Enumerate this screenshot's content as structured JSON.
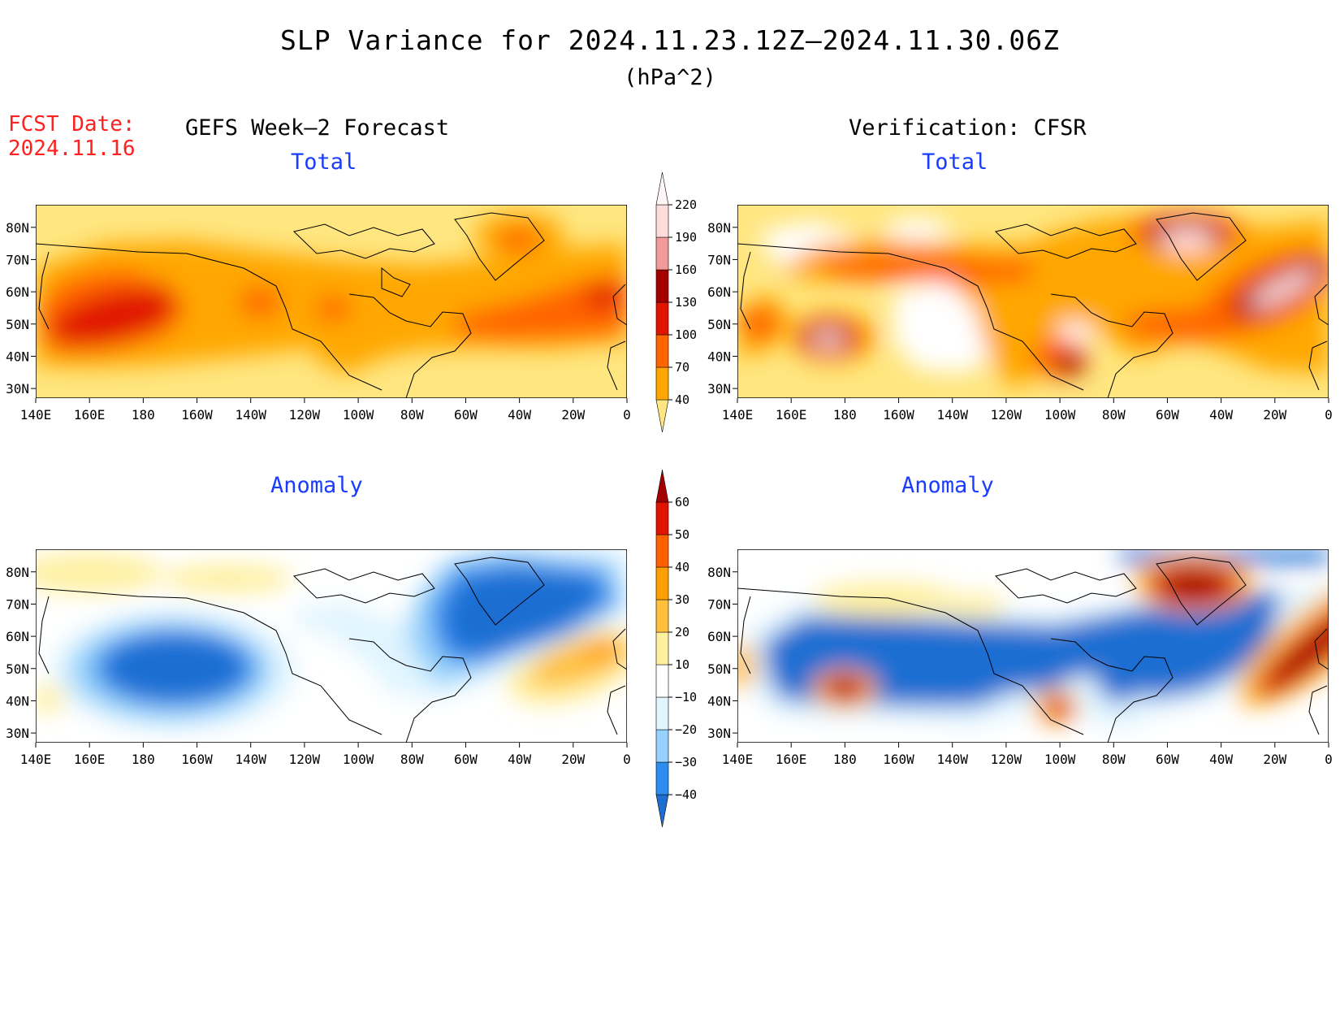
{
  "title": "SLP Variance for 2024.11.23.12Z–2024.11.30.06Z",
  "units": "(hPa^2)",
  "fcst_label": "FCST Date:",
  "fcst_date": "2024.11.16",
  "columns": {
    "left": "GEFS Week–2 Forecast",
    "right": "Verification: CFSR"
  },
  "panel_titles": {
    "total": "Total",
    "anomaly": "Anomaly"
  },
  "lon_ticks": [
    "140E",
    "160E",
    "180",
    "160W",
    "140W",
    "120W",
    "100W",
    "80W",
    "60W",
    "40W",
    "20W",
    "0"
  ],
  "lat_ticks": [
    "80N",
    "70N",
    "60N",
    "50N",
    "40N",
    "30N"
  ],
  "total_colorbar": {
    "labels": [
      "40",
      "70",
      "100",
      "130",
      "160",
      "190",
      "220"
    ],
    "colors": [
      "#ffe680",
      "#ffa700",
      "#ff6400",
      "#e01400",
      "#a50000",
      "#f29b9b",
      "#ffdcdc",
      "#fff5f5"
    ]
  },
  "anomaly_colorbar": {
    "labels": [
      "−40",
      "−30",
      "−20",
      "−10",
      "10",
      "20",
      "30",
      "40",
      "50",
      "60"
    ],
    "colors": [
      "#1e6ed2",
      "#2d8cf0",
      "#96d2fa",
      "#e1f5ff",
      "#ffffff",
      "#fff0a0",
      "#ffc03c",
      "#ffa000",
      "#ff6000",
      "#e01400",
      "#a50000"
    ]
  }
}
